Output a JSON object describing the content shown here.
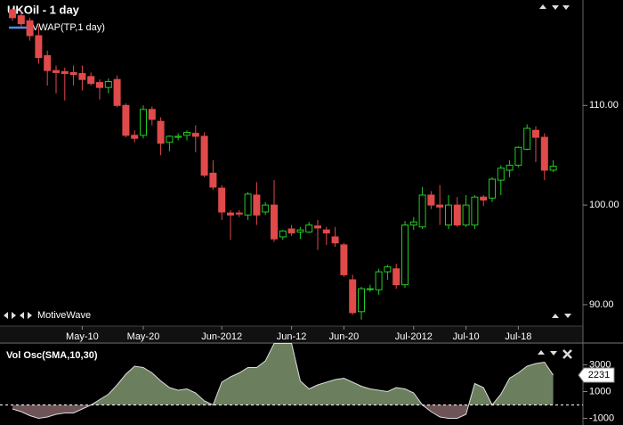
{
  "chart_data": [
    {
      "type": "candlestick",
      "title": "UKOil - 1 day",
      "legend": [
        "VWAP(TP,1 day)"
      ],
      "legend_color": "#4a8ef0",
      "watermark": "MotiveWave",
      "up_color": "#22cc22",
      "down_color": "#e04a4a",
      "categories": [
        null,
        null,
        null,
        null,
        null,
        null,
        null,
        null,
        "May-10",
        null,
        null,
        null,
        null,
        null,
        null,
        "May-20",
        null,
        null,
        null,
        null,
        null,
        null,
        null,
        null,
        "Jun-2012",
        null,
        null,
        null,
        null,
        null,
        null,
        null,
        "Jun-12",
        null,
        null,
        null,
        null,
        null,
        "Jun-20",
        null,
        null,
        null,
        null,
        null,
        null,
        null,
        "Jul-2012",
        null,
        null,
        null,
        null,
        null,
        "Jul-10",
        null,
        null,
        null,
        null,
        null,
        "Jul-18",
        null,
        null,
        null,
        null
      ],
      "open": [
        119.6,
        119.0,
        118.5,
        117.0,
        115.0,
        113.5,
        113.4,
        113.3,
        113.2,
        112.9,
        112.3,
        111.8,
        112.6,
        110.0,
        107.0,
        107.0,
        109.6,
        108.4,
        106.3,
        106.8,
        107.0,
        107.2,
        106.9,
        103.2,
        101.7,
        99.2,
        99.2,
        99.0,
        101.0,
        99.3,
        100.0,
        96.8,
        97.6,
        97.3,
        97.3,
        97.9,
        97.5,
        96.8,
        96.0,
        92.5,
        89.3,
        91.6,
        91.5,
        93.3,
        93.6,
        92.0,
        98.0,
        97.8,
        101.0,
        100.0,
        98.0,
        100.0,
        98.0,
        98.0,
        100.8,
        100.7,
        102.5,
        103.5,
        104.0,
        105.6,
        107.5,
        106.8,
        103.5
      ],
      "high": [
        119.8,
        119.5,
        118.8,
        118.0,
        115.5,
        114.0,
        113.8,
        114.0,
        114.0,
        113.3,
        112.6,
        112.7,
        113.0,
        110.2,
        107.5,
        110.0,
        109.9,
        108.8,
        107.0,
        107.2,
        107.5,
        108.0,
        107.3,
        104.5,
        102.0,
        99.5,
        99.5,
        101.3,
        102.3,
        100.3,
        102.5,
        97.5,
        98.0,
        97.8,
        98.3,
        98.5,
        97.8,
        97.8,
        96.2,
        93.0,
        91.8,
        92.0,
        93.6,
        94.0,
        94.1,
        98.4,
        98.8,
        101.8,
        101.4,
        102.0,
        101.0,
        100.8,
        101.0,
        101.0,
        101.0,
        102.8,
        104.0,
        104.5,
        105.9,
        108.1,
        107.9,
        107.2,
        104.5
      ],
      "low": [
        118.5,
        117.8,
        116.5,
        114.2,
        112.0,
        111.2,
        110.5,
        112.0,
        111.5,
        112.0,
        110.6,
        111.2,
        109.8,
        106.8,
        106.3,
        106.7,
        108.0,
        105.0,
        105.4,
        106.5,
        106.5,
        105.3,
        102.8,
        101.5,
        98.5,
        96.5,
        98.8,
        98.5,
        98.0,
        99.0,
        96.3,
        96.5,
        96.9,
        96.6,
        97.2,
        95.5,
        96.0,
        95.8,
        92.8,
        89.0,
        88.5,
        91.3,
        91.0,
        92.5,
        91.6,
        91.7,
        97.5,
        97.6,
        99.6,
        98.0,
        97.6,
        97.8,
        97.8,
        97.6,
        99.9,
        100.3,
        101.0,
        102.8,
        103.8,
        105.5,
        104.3,
        102.5,
        103.3
      ],
      "close": [
        118.8,
        118.2,
        117.0,
        114.8,
        113.5,
        113.3,
        113.2,
        113.1,
        112.6,
        112.2,
        111.8,
        112.4,
        110.0,
        107.0,
        106.7,
        109.6,
        108.6,
        106.2,
        106.9,
        106.9,
        107.3,
        106.9,
        103.0,
        101.8,
        99.3,
        99.0,
        99.1,
        101.1,
        99.0,
        100.0,
        96.6,
        97.4,
        97.2,
        97.5,
        98.0,
        97.7,
        97.2,
        96.2,
        93.0,
        89.2,
        91.6,
        91.6,
        93.3,
        93.8,
        92.0,
        98.0,
        98.3,
        101.0,
        100.0,
        99.8,
        100.0,
        98.0,
        100.0,
        100.8,
        100.5,
        102.6,
        103.7,
        104.0,
        105.8,
        107.7,
        106.8,
        103.5,
        103.9
      ],
      "ylim": [
        87.85,
        120.58
      ],
      "yticks": [
        {
          "value": 110,
          "label": "110.00"
        },
        {
          "value": 100,
          "label": "100.00"
        },
        {
          "value": 90,
          "label": "90.00"
        }
      ]
    },
    {
      "type": "area",
      "title": "Vol Osc(SMA,10,30)",
      "up_color": "#6b7f5e",
      "down_color": "#6e5456",
      "values": [
        -300,
        -500,
        -800,
        -1000,
        -900,
        -700,
        -600,
        -600,
        -300,
        0,
        400,
        800,
        1500,
        2300,
        2900,
        2800,
        2400,
        1800,
        1300,
        1100,
        1200,
        900,
        300,
        0,
        1700,
        2100,
        2400,
        2800,
        2800,
        3300,
        4600,
        4600,
        4600,
        1800,
        1200,
        1500,
        1700,
        1900,
        2000,
        1700,
        1400,
        1200,
        1100,
        1000,
        1300,
        1200,
        900,
        0,
        -500,
        -900,
        -1000,
        -1000,
        -700,
        1600,
        1300,
        0,
        800,
        2000,
        2400,
        2900,
        3100,
        3200,
        2231
      ],
      "ylim": [
        -1500,
        4500
      ],
      "yticks": [
        3000,
        1000,
        -1000
      ]
    }
  ]
}
